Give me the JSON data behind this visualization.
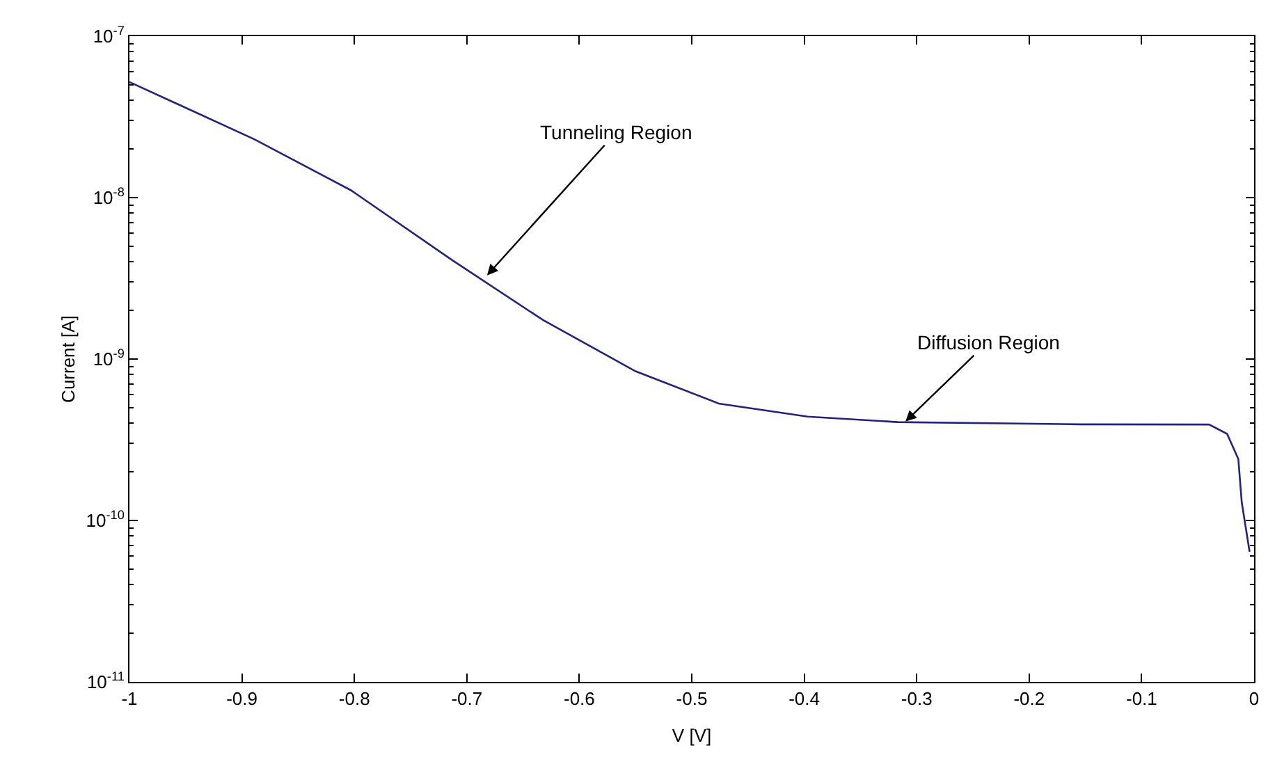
{
  "chart_data": {
    "type": "line",
    "xlabel": "V [V]",
    "ylabel": "Current [A]",
    "log": "y",
    "x": [
      -1,
      -0.889,
      -0.803,
      -0.713,
      -0.632,
      -0.55,
      -0.476,
      -0.397,
      -0.317,
      -0.154,
      -0.04,
      -0.024,
      -0.014,
      -0.011,
      -0.004
    ],
    "series": [
      {
        "color": "#23237a",
        "values": [
          5.2e-08,
          2.3e-08,
          1.11e-08,
          4.1e-09,
          1.74e-09,
          8.4e-10,
          5.3e-10,
          4.4e-10,
          4.07e-10,
          3.94e-10,
          3.93e-10,
          3.44e-10,
          2.4e-10,
          1.3e-10,
          6.4e-11
        ]
      }
    ],
    "xlim": [
      -1,
      0
    ],
    "xticks": [
      -1,
      -0.9,
      -0.8,
      -0.7,
      -0.6,
      -0.5,
      -0.4,
      -0.3,
      -0.2,
      -0.1,
      0
    ],
    "ylim": [
      1e-11,
      1e-07
    ],
    "yticks": [
      {
        "value": 1e-11,
        "label": "10$^{-11}$"
      },
      {
        "value": 1e-10,
        "label": "10$^{-10}$"
      },
      {
        "value": 1e-09,
        "label": "10$^{-9}$"
      },
      {
        "value": 1e-08,
        "label": "10$^{-8}$"
      },
      {
        "value": 1e-07,
        "label": "10$^{-7}$"
      }
    ],
    "annotations": [
      {
        "text": "Tunneling Region",
        "x": -0.682,
        "y": 3.3e-09
      },
      {
        "text": "Diffusion Region",
        "x": -0.31,
        "y": 4.1e-10
      }
    ],
    "marker": "none",
    "line_style": "solid"
  }
}
